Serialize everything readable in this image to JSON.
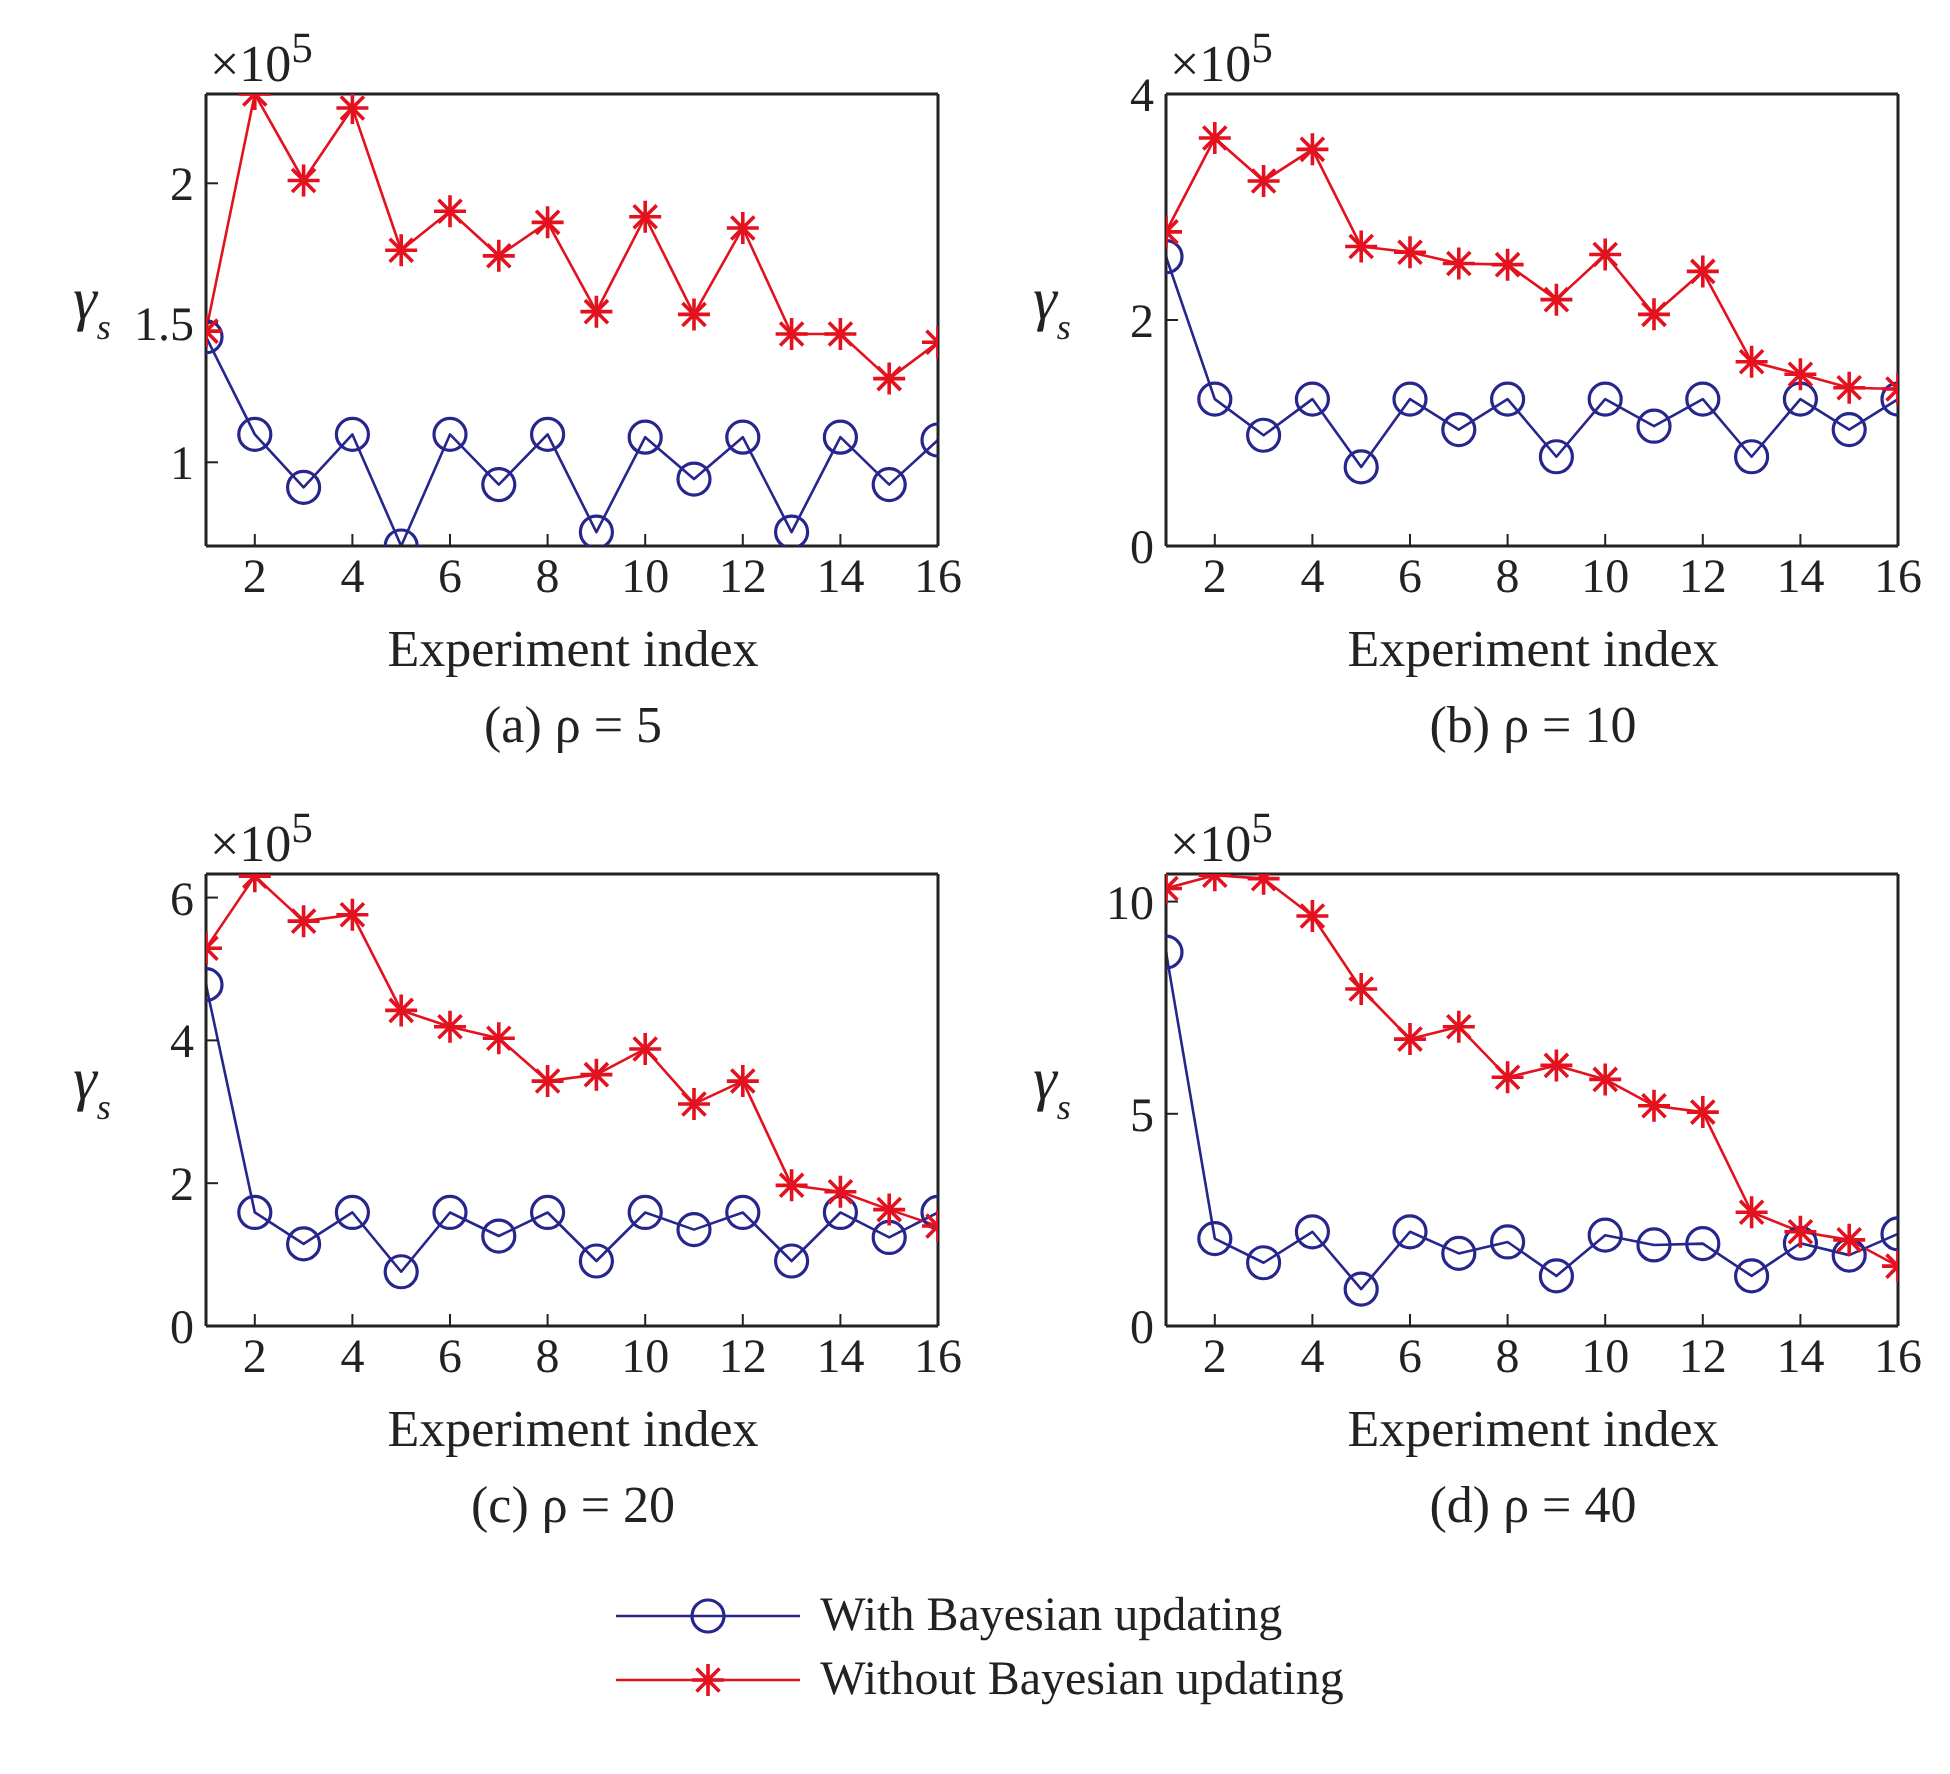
{
  "chart_data": [
    {
      "type": "line",
      "title": "(a) ρ = 5",
      "xlabel": "Experiment index",
      "ylabel": "γ$_{s}$",
      "annotations": [
        "×10$^{5}$"
      ],
      "x": [
        1,
        2,
        3,
        4,
        5,
        6,
        7,
        8,
        9,
        10,
        11,
        12,
        13,
        14,
        15,
        16
      ],
      "xlim": [
        1,
        16
      ],
      "xticks": [
        2,
        4,
        6,
        8,
        10,
        12,
        14,
        16
      ],
      "ylim": [
        0.7,
        2.32
      ],
      "yticks": [
        1,
        1.5,
        2
      ],
      "legend": "bottom",
      "line_style": "solid",
      "series": [
        {
          "name": "With Bayesian updating",
          "color": "#26268c",
          "marker": "circle",
          "values": [
            1.45,
            1.1,
            0.91,
            1.1,
            0.7,
            1.1,
            0.92,
            1.1,
            0.75,
            1.09,
            0.94,
            1.09,
            0.75,
            1.09,
            0.92,
            1.08
          ]
        },
        {
          "name": "Without Bayesian updating",
          "color": "#e4111f",
          "marker": "cross",
          "values": [
            1.47,
            2.32,
            2.01,
            2.27,
            1.76,
            1.9,
            1.74,
            1.86,
            1.54,
            1.88,
            1.53,
            1.84,
            1.46,
            1.46,
            1.3,
            1.43
          ]
        }
      ]
    },
    {
      "type": "line",
      "title": "(b) ρ = 10",
      "xlabel": "Experiment index",
      "ylabel": "γ$_{s}$",
      "annotations": [
        "×10$^{5}$"
      ],
      "x": [
        1,
        2,
        3,
        4,
        5,
        6,
        7,
        8,
        9,
        10,
        11,
        12,
        13,
        14,
        15,
        16
      ],
      "xlim": [
        1,
        16
      ],
      "xticks": [
        2,
        4,
        6,
        8,
        10,
        12,
        14,
        16
      ],
      "ylim": [
        0,
        4
      ],
      "yticks": [
        0,
        2,
        4
      ],
      "line_style": "solid",
      "series": [
        {
          "color": "#26268c",
          "marker": "circle",
          "values": [
            2.56,
            1.3,
            0.98,
            1.3,
            0.7,
            1.3,
            1.03,
            1.3,
            0.79,
            1.3,
            1.06,
            1.3,
            0.79,
            1.3,
            1.03,
            1.3
          ]
        },
        {
          "color": "#e4111f",
          "marker": "cross",
          "values": [
            2.78,
            3.61,
            3.23,
            3.51,
            2.65,
            2.6,
            2.5,
            2.49,
            2.18,
            2.58,
            2.05,
            2.43,
            1.63,
            1.52,
            1.4,
            1.39
          ]
        }
      ]
    },
    {
      "type": "line",
      "title": "(c) ρ = 20",
      "xlabel": "Experiment index",
      "ylabel": "γ$_{s}$",
      "annotations": [
        "×10$^{5}$"
      ],
      "x": [
        1,
        2,
        3,
        4,
        5,
        6,
        7,
        8,
        9,
        10,
        11,
        12,
        13,
        14,
        15,
        16
      ],
      "xlim": [
        1,
        16
      ],
      "xticks": [
        2,
        4,
        6,
        8,
        10,
        12,
        14,
        16
      ],
      "ylim": [
        0,
        6.33
      ],
      "yticks": [
        0,
        2,
        4,
        6
      ],
      "line_style": "solid",
      "series": [
        {
          "color": "#26268c",
          "marker": "circle",
          "values": [
            4.78,
            1.59,
            1.15,
            1.59,
            0.76,
            1.59,
            1.26,
            1.59,
            0.91,
            1.59,
            1.35,
            1.59,
            0.91,
            1.59,
            1.24,
            1.59
          ]
        },
        {
          "color": "#e4111f",
          "marker": "cross",
          "values": [
            5.29,
            6.3,
            5.67,
            5.76,
            4.42,
            4.19,
            4.03,
            3.43,
            3.52,
            3.88,
            3.11,
            3.43,
            1.97,
            1.88,
            1.63,
            1.4
          ]
        }
      ]
    },
    {
      "type": "line",
      "title": "(d) ρ = 40",
      "xlabel": "Experiment index",
      "ylabel": "γ$_{s}$",
      "annotations": [
        "×10$^{5}$"
      ],
      "x": [
        1,
        2,
        3,
        4,
        5,
        6,
        7,
        8,
        9,
        10,
        11,
        12,
        13,
        14,
        15,
        16
      ],
      "xlim": [
        1,
        16
      ],
      "xticks": [
        2,
        4,
        6,
        8,
        10,
        12,
        14,
        16
      ],
      "ylim": [
        0,
        10.65
      ],
      "yticks": [
        0,
        5,
        10
      ],
      "line_style": "solid",
      "series": [
        {
          "color": "#26268c",
          "marker": "circle",
          "values": [
            8.81,
            2.06,
            1.49,
            2.22,
            0.87,
            2.22,
            1.71,
            1.98,
            1.18,
            2.14,
            1.91,
            1.94,
            1.18,
            1.95,
            1.67,
            2.17
          ]
        },
        {
          "color": "#e4111f",
          "marker": "cross",
          "values": [
            10.31,
            10.62,
            10.54,
            9.66,
            7.94,
            6.76,
            7.05,
            5.86,
            6.14,
            5.81,
            5.19,
            5.04,
            2.68,
            2.22,
            2.03,
            1.41
          ]
        }
      ]
    }
  ]
}
